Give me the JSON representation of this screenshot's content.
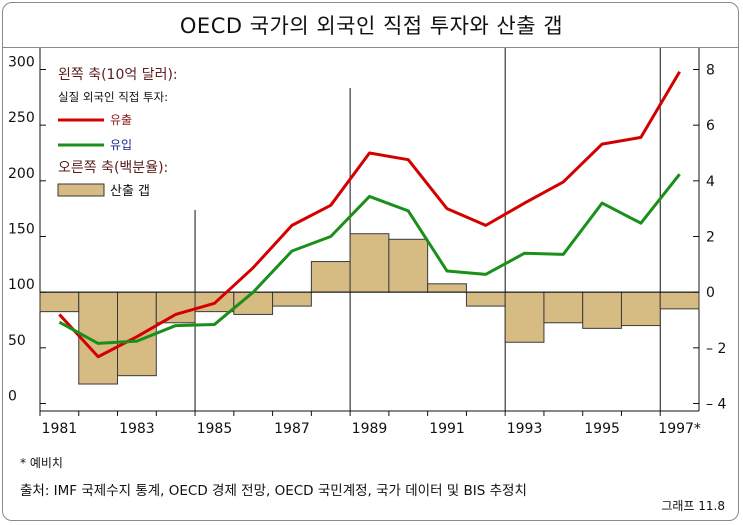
{
  "title": "OECD 국가의 외국인 직접 투자와 산출 갭",
  "footnote": "* 예비치",
  "source": "출처: IMF 국제수지 통계, OECD 경제 전망, OECD 국민계정, 국가 데이터 및 BIS 추정치",
  "figure_label": "그래프 11.8",
  "legend": {
    "left_axis_title": "왼쪽 축(10억 달러):",
    "real_fdi_title": "실질 외국인 직접 투자:",
    "outflow_label": "유출",
    "inflow_label": "유입",
    "right_axis_title": "오른쪽 축(백분율):",
    "gap_label": "산출 갭"
  },
  "colors": {
    "outflow": "#d40000",
    "inflow": "#1a8f1a",
    "bar_fill": "#d6bb83",
    "bar_stroke": "#3a3a3a",
    "outflow_legend_text": "#8b1a1a",
    "inflow_legend_text": "#1a2a8b"
  },
  "chart_data": {
    "type": "line",
    "x_tick_labels": [
      "1981",
      "1983",
      "1985",
      "1987",
      "1989",
      "1991",
      "1993",
      "1995",
      "1997*"
    ],
    "left_axis": {
      "ylim": [
        0,
        300
      ],
      "ticks": [
        0,
        50,
        100,
        150,
        200,
        250,
        300
      ]
    },
    "right_axis": {
      "ylim": [
        -4,
        8
      ],
      "ticks": [
        -4,
        -2,
        0,
        2,
        4,
        6,
        8
      ],
      "tick_labels": [
        "– 4",
        "– 2",
        "0",
        "2",
        "4",
        "6",
        "8"
      ]
    },
    "x": [
      1981,
      1982,
      1983,
      1984,
      1985,
      1986,
      1987,
      1988,
      1989,
      1990,
      1991,
      1992,
      1993,
      1994,
      1995,
      1996,
      1997
    ],
    "series": [
      {
        "name": "유출",
        "axis": "left",
        "values": [
          80,
          42,
          60,
          80,
          90,
          122,
          160,
          178,
          225,
          219,
          175,
          160,
          180,
          199,
          233,
          239,
          298
        ]
      },
      {
        "name": "유입",
        "axis": "left",
        "values": [
          73,
          54,
          56,
          70,
          71,
          100,
          137,
          150,
          186,
          173,
          119,
          116,
          135,
          134,
          180,
          162,
          206
        ]
      },
      {
        "name": "산출 갭",
        "type": "bar",
        "axis": "right",
        "values": [
          -0.7,
          -3.3,
          -3.0,
          -1.1,
          -0.7,
          -0.8,
          -0.5,
          1.1,
          2.1,
          1.9,
          0.3,
          -0.5,
          -1.8,
          -1.1,
          -1.3,
          -1.2,
          -0.6
        ]
      }
    ],
    "grid": false,
    "vertical_reference_years": [
      1984.5,
      1988.5,
      1992.5,
      1996.5
    ]
  }
}
